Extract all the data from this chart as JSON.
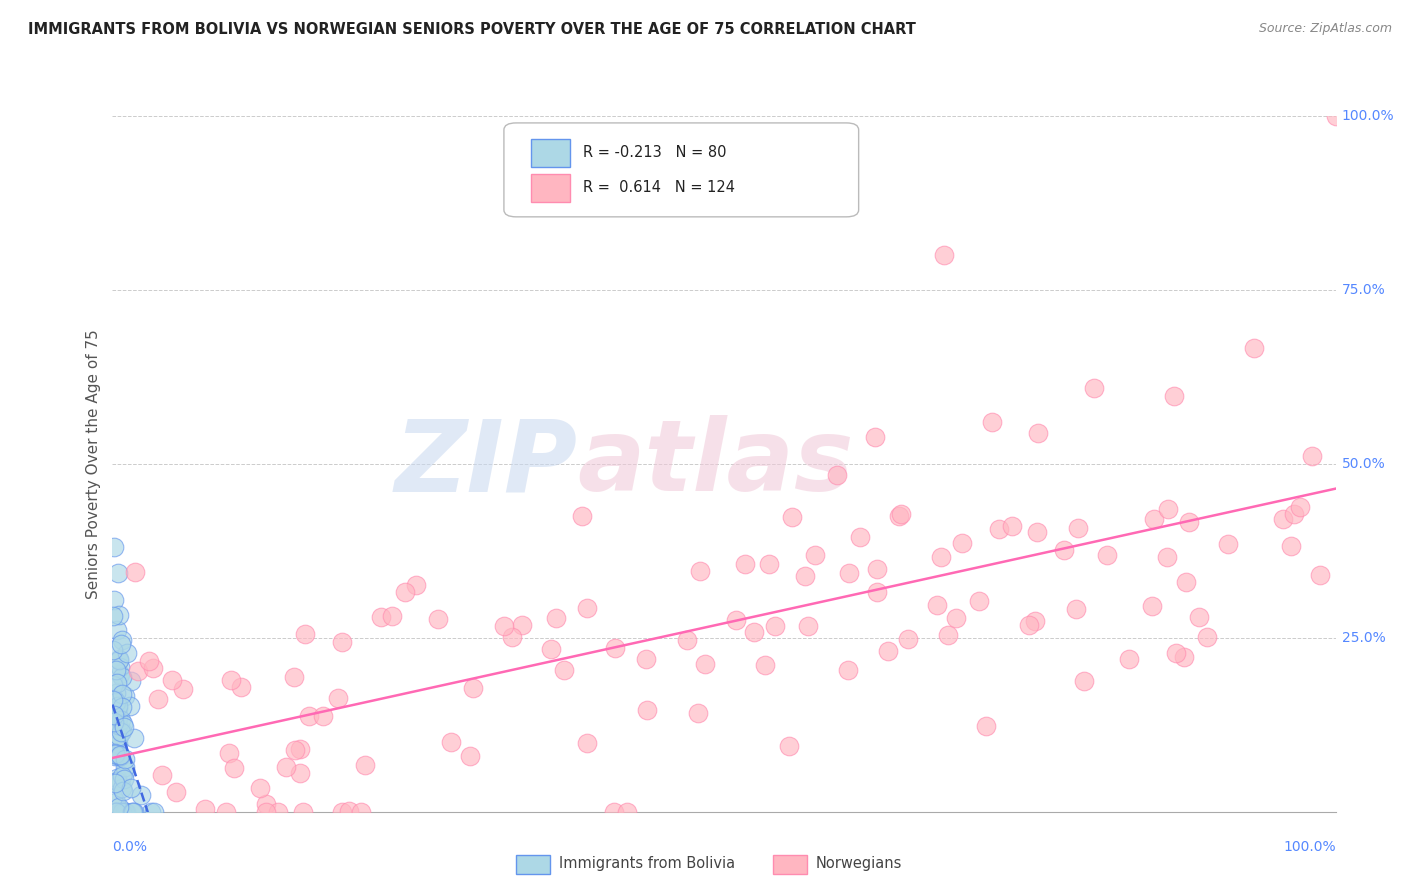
{
  "title": "IMMIGRANTS FROM BOLIVIA VS NORWEGIAN SENIORS POVERTY OVER THE AGE OF 75 CORRELATION CHART",
  "source": "Source: ZipAtlas.com",
  "ylabel": "Seniors Poverty Over the Age of 75",
  "legend1_label": "Immigrants from Bolivia",
  "legend2_label": "Norwegians",
  "R1": -0.213,
  "N1": 80,
  "R2": 0.614,
  "N2": 124,
  "color_blue_face": "#ADD8E6",
  "color_blue_edge": "#6495ED",
  "color_blue_line": "#4169E1",
  "color_pink_face": "#FFB6C1",
  "color_pink_edge": "#FF8CB0",
  "color_pink_line": "#FF69B4",
  "watermark_zip": "ZIP",
  "watermark_atlas": "atlas",
  "background_color": "#ffffff",
  "grid_color": "#cccccc",
  "right_tick_color": "#5588FF",
  "title_color": "#222222",
  "source_color": "#888888",
  "ylabel_color": "#555555"
}
